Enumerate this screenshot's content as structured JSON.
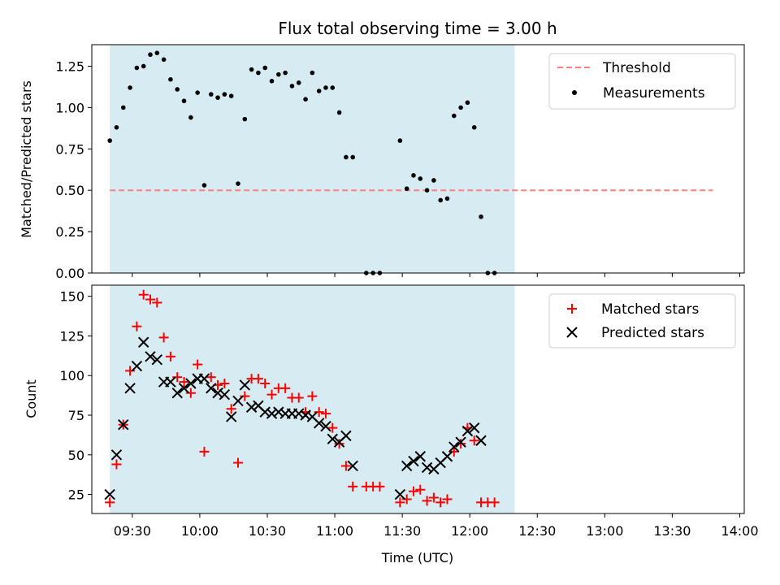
{
  "chart_data": [
    {
      "type": "scatter",
      "title": "Flux total observing time = 3.00 h",
      "xlabel": "",
      "ylabel": "Matched/Predicted stars",
      "xlim": [
        "09:12",
        "14:02"
      ],
      "ylim": [
        0,
        1.38
      ],
      "yticks": [
        "0.00",
        "0.25",
        "0.50",
        "0.75",
        "1.00",
        "1.25"
      ],
      "ytick_values": [
        0,
        0.25,
        0.5,
        0.75,
        1.0,
        1.25
      ],
      "xticks_values": [
        "09:30",
        "10:00",
        "10:30",
        "11:00",
        "11:30",
        "12:00",
        "12:30",
        "13:00",
        "13:30",
        "14:00"
      ],
      "shaded_span": [
        "09:20",
        "12:20"
      ],
      "threshold": {
        "name": "Threshold",
        "y": 0.5,
        "x_range": [
          "09:20",
          "13:48"
        ],
        "color": "#ff7f7f"
      },
      "legend_position": "top-right",
      "series": [
        {
          "name": "Measurements",
          "color": "#000000",
          "x": [
            "09:20",
            "09:23",
            "09:26",
            "09:29",
            "09:32",
            "09:35",
            "09:38",
            "09:41",
            "09:44",
            "09:47",
            "09:50",
            "09:53",
            "09:56",
            "09:59",
            "10:02",
            "10:05",
            "10:08",
            "10:11",
            "10:14",
            "10:17",
            "10:20",
            "10:23",
            "10:26",
            "10:29",
            "10:32",
            "10:35",
            "10:38",
            "10:41",
            "10:44",
            "10:47",
            "10:50",
            "10:53",
            "10:56",
            "10:59",
            "11:02",
            "11:05",
            "11:08",
            "11:11",
            "11:14",
            "11:17",
            "11:20",
            "11:23",
            "11:26",
            "11:29",
            "11:32",
            "11:35",
            "11:38",
            "11:41",
            "11:44",
            "11:47",
            "11:50",
            "11:53",
            "11:56",
            "11:59",
            "12:02",
            "12:05",
            "12:08",
            "12:11",
            "12:14",
            "12:17",
            "12:20",
            "12:23",
            "12:26",
            "12:29",
            "12:32",
            "12:35",
            "12:38",
            "12:41",
            "12:44",
            "12:47",
            "12:50",
            "12:53",
            "12:56",
            "12:59",
            "13:02",
            "13:05",
            "13:08",
            "13:11",
            "13:14",
            "13:17",
            "13:20",
            "13:23",
            "13:26",
            "13:29",
            "13:32",
            "13:35",
            "13:38",
            "13:41",
            "13:44",
            "13:47"
          ],
          "y": [
            0.8,
            0.88,
            1.0,
            1.12,
            1.24,
            1.25,
            1.32,
            1.33,
            1.29,
            1.17,
            1.11,
            1.04,
            0.94,
            1.09,
            0.53,
            1.08,
            1.06,
            1.08,
            1.07,
            0.54,
            0.93,
            1.23,
            1.21,
            1.24,
            1.16,
            1.2,
            1.21,
            1.13,
            1.15,
            1.05,
            1.21,
            1.1,
            1.12,
            1.12,
            0.97,
            0.7,
            0.7,
            null,
            0.0,
            0.0,
            0.0,
            null,
            null,
            0.8,
            0.51,
            0.59,
            0.57,
            0.5,
            0.56,
            0.44,
            0.45,
            0.95,
            1.0,
            1.03,
            0.88,
            0.34,
            0.0,
            0.0,
            null,
            null,
            null,
            null,
            null,
            null,
            null,
            null,
            null,
            null,
            null,
            null,
            null,
            null,
            null,
            null,
            null,
            null,
            null,
            null,
            null,
            null,
            null,
            null,
            null,
            null,
            null,
            null,
            null,
            null,
            null,
            null
          ]
        }
      ]
    },
    {
      "type": "scatter",
      "title": "",
      "xlabel": "Time (UTC)",
      "ylabel": "Count",
      "xlim": [
        "09:12",
        "14:02"
      ],
      "ylim": [
        13,
        157
      ],
      "yticks": [
        "25",
        "50",
        "75",
        "100",
        "125",
        "150"
      ],
      "ytick_values": [
        25,
        50,
        75,
        100,
        125,
        150
      ],
      "xticks": [
        "09:30",
        "10:00",
        "10:30",
        "11:00",
        "11:30",
        "12:00",
        "12:30",
        "13:00",
        "13:30",
        "14:00"
      ],
      "shaded_span": [
        "09:20",
        "12:20"
      ],
      "legend_position": "top-right",
      "series": [
        {
          "name": "Matched stars",
          "marker": "plus",
          "color": "#ff0000",
          "x": [
            "09:20",
            "09:23",
            "09:26",
            "09:29",
            "09:32",
            "09:35",
            "09:38",
            "09:41",
            "09:44",
            "09:47",
            "09:50",
            "09:53",
            "09:56",
            "09:59",
            "10:02",
            "10:05",
            "10:08",
            "10:11",
            "10:14",
            "10:17",
            "10:20",
            "10:23",
            "10:26",
            "10:29",
            "10:32",
            "10:35",
            "10:38",
            "10:41",
            "10:44",
            "10:47",
            "10:50",
            "10:53",
            "10:56",
            "10:59",
            "11:02",
            "11:05",
            "11:08",
            "11:11",
            "11:14",
            "11:17",
            "11:20",
            "11:23",
            "11:26",
            "11:29",
            "11:32",
            "11:35",
            "11:38",
            "11:41",
            "11:44",
            "11:47",
            "11:50",
            "11:53",
            "11:56",
            "11:59",
            "12:02",
            "12:05",
            "12:08",
            "12:11",
            "12:14",
            "12:17",
            "12:20",
            "12:23",
            "12:26",
            "12:29",
            "12:32",
            "12:35",
            "12:38",
            "12:41",
            "12:44",
            "12:47",
            "12:50",
            "12:53",
            "12:56",
            "12:59",
            "13:02",
            "13:05",
            "13:08",
            "13:11",
            "13:14",
            "13:17",
            "13:20",
            "13:23",
            "13:26",
            "13:29",
            "13:32",
            "13:35",
            "13:38",
            "13:41",
            "13:44",
            "13:47"
          ],
          "y": [
            20,
            44,
            69,
            103,
            131,
            151,
            148,
            146,
            124,
            112,
            99,
            96,
            89,
            107,
            52,
            99,
            94,
            95,
            79,
            45,
            87,
            98,
            98,
            95,
            88,
            92,
            92,
            86,
            86,
            77,
            87,
            77,
            76,
            67,
            57,
            43,
            30,
            null,
            30,
            30,
            30,
            null,
            null,
            20,
            22,
            27,
            28,
            21,
            23,
            20,
            22,
            52,
            57,
            67,
            59,
            20,
            20,
            20,
            null,
            null,
            null,
            null,
            null,
            null,
            null,
            null,
            null,
            null,
            null,
            null,
            null,
            null,
            null,
            null,
            null,
            null,
            null,
            null,
            null,
            null,
            null,
            null,
            null,
            null,
            null,
            null,
            null,
            null,
            null,
            null
          ]
        },
        {
          "name": "Predicted stars",
          "marker": "x",
          "color": "#000000",
          "x": [
            "09:20",
            "09:23",
            "09:26",
            "09:29",
            "09:32",
            "09:35",
            "09:38",
            "09:41",
            "09:44",
            "09:47",
            "09:50",
            "09:53",
            "09:56",
            "09:59",
            "10:02",
            "10:05",
            "10:08",
            "10:11",
            "10:14",
            "10:17",
            "10:20",
            "10:23",
            "10:26",
            "10:29",
            "10:32",
            "10:35",
            "10:38",
            "10:41",
            "10:44",
            "10:47",
            "10:50",
            "10:53",
            "10:56",
            "10:59",
            "11:02",
            "11:05",
            "11:08",
            "11:11",
            "11:14",
            "11:17",
            "11:20",
            "11:23",
            "11:26",
            "11:29",
            "11:32",
            "11:35",
            "11:38",
            "11:41",
            "11:44",
            "11:47",
            "11:50",
            "11:53",
            "11:56",
            "11:59",
            "12:02",
            "12:05",
            "12:08",
            "12:11",
            "12:14",
            "12:17",
            "12:20",
            "12:23",
            "12:26",
            "12:29",
            "12:32",
            "12:35",
            "12:38",
            "12:41",
            "12:44",
            "12:47",
            "12:50",
            "12:53",
            "12:56",
            "12:59",
            "13:02",
            "13:05",
            "13:08",
            "13:11",
            "13:14",
            "13:17",
            "13:20",
            "13:23",
            "13:26",
            "13:29",
            "13:32",
            "13:35",
            "13:38",
            "13:41",
            "13:44",
            "13:47"
          ],
          "y": [
            25,
            50,
            69,
            92,
            106,
            121,
            112,
            110,
            96,
            96,
            89,
            92,
            95,
            98,
            98,
            92,
            89,
            88,
            74,
            84,
            94,
            80,
            81,
            77,
            76,
            77,
            76,
            76,
            76,
            75,
            74,
            70,
            68,
            60,
            58,
            62,
            43,
            null,
            null,
            null,
            null,
            null,
            null,
            25,
            43,
            46,
            49,
            42,
            41,
            45,
            49,
            55,
            58,
            65,
            67,
            59,
            null,
            null,
            null,
            null,
            null,
            null,
            null,
            null,
            null,
            null,
            null,
            null,
            null,
            null,
            null,
            null,
            null,
            null,
            null,
            null,
            null,
            null,
            null,
            null,
            null,
            null,
            null,
            null,
            null,
            null,
            null,
            null,
            null,
            null
          ]
        }
      ]
    }
  ]
}
